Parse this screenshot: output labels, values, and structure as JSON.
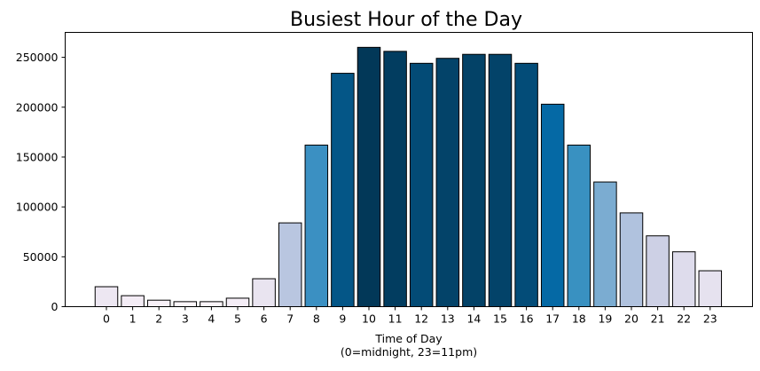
{
  "chart_data": {
    "type": "bar",
    "title": "Busiest Hour of the Day",
    "xlabel_lines": [
      "Time of Day",
      "(0=midnight, 23=11pm)"
    ],
    "ylabel": "",
    "categories": [
      "0",
      "1",
      "2",
      "3",
      "4",
      "5",
      "6",
      "7",
      "8",
      "9",
      "10",
      "11",
      "12",
      "13",
      "14",
      "15",
      "16",
      "17",
      "18",
      "19",
      "20",
      "21",
      "22",
      "23"
    ],
    "values": [
      20000,
      11000,
      6500,
      5000,
      5000,
      8500,
      28000,
      84000,
      162000,
      234000,
      260000,
      256000,
      244000,
      249000,
      253000,
      253000,
      244000,
      203000,
      162000,
      125000,
      94000,
      71000,
      55000,
      36000
    ],
    "colors": [
      "#ede7f2",
      "#f3ecf5",
      "#f7f0f7",
      "#fdf6fa",
      "#fbf4f9",
      "#f4edf6",
      "#e9e4f0",
      "#b9c6e0",
      "#3b90c2",
      "#045687",
      "#023858",
      "#023d60",
      "#034b76",
      "#034369",
      "#034267",
      "#034369",
      "#034c78",
      "#0569a5",
      "#3991c1",
      "#7bacd1",
      "#b0c2de",
      "#cdd0e5",
      "#dedcec",
      "#e6e2ef"
    ],
    "ylim": [
      0,
      275000
    ],
    "yticks": [
      0,
      50000,
      100000,
      150000,
      200000,
      250000
    ],
    "ytick_labels": [
      "0",
      "50000",
      "100000",
      "150000",
      "200000",
      "250000"
    ],
    "grid": false,
    "legend": "none"
  }
}
